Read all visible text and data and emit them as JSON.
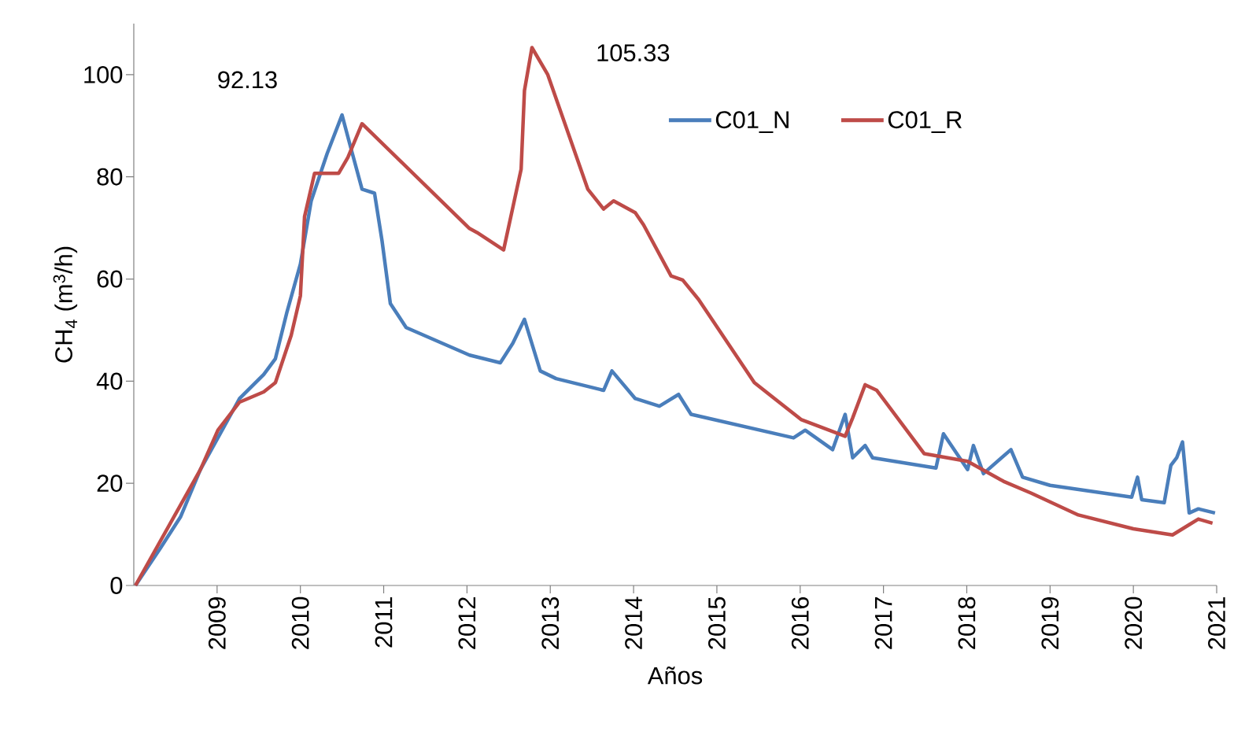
{
  "chart_data": {
    "type": "line",
    "xlabel": "Años",
    "ylabel": "CH$_{4}$ (m$^{3}$/h)",
    "xlim": [
      2008,
      2021
    ],
    "ylim": [
      0,
      110
    ],
    "xticks": [
      2009,
      2010,
      2011,
      2012,
      2013,
      2014,
      2015,
      2016,
      2017,
      2018,
      2019,
      2020,
      2021
    ],
    "yticks": [
      0,
      20,
      40,
      60,
      80,
      100
    ],
    "grid": false,
    "legend": "top right",
    "marker": "none",
    "line_style": "solid",
    "annotations": [
      "92.13",
      "105.33"
    ],
    "series": [
      {
        "name": "C01_N",
        "color": "#4a7ebb",
        "x": [
          2008.02,
          2008.32,
          2008.56,
          2008.8,
          2009.01,
          2009.27,
          2009.56,
          2009.7,
          2009.84,
          2010.0,
          2010.13,
          2010.32,
          2010.5,
          2010.6,
          2010.74,
          2010.89,
          2010.98,
          2011.08,
          2011.27,
          2012.03,
          2012.4,
          2012.55,
          2012.69,
          2012.88,
          2013.07,
          2013.64,
          2013.74,
          2014.02,
          2014.31,
          2014.54,
          2014.69,
          2015.92,
          2016.06,
          2016.39,
          2016.54,
          2016.63,
          2016.78,
          2016.87,
          2017.63,
          2017.72,
          2018.01,
          2018.08,
          2018.2,
          2018.53,
          2018.67,
          2019.0,
          2019.98,
          2020.05,
          2020.1,
          2020.37,
          2020.45,
          2020.52,
          2020.59,
          2020.67,
          2020.78,
          2020.98
        ],
        "values": [
          0,
          7.3,
          13.4,
          22.7,
          null,
          36.6,
          41.3,
          44.4,
          53.6,
          62.9,
          75.3,
          84.5,
          92.1,
          86,
          77.6,
          76.8,
          67.5,
          55.2,
          50.5,
          45.1,
          43.6,
          47.4,
          52.1,
          42,
          40.5,
          38.2,
          42,
          36.6,
          35.1,
          37.4,
          33.5,
          28.9,
          30.4,
          26.6,
          33.5,
          25,
          27.4,
          25,
          23,
          29.7,
          22.7,
          27.4,
          21.9,
          26.6,
          21.2,
          19.6,
          17.3,
          21.2,
          16.8,
          16.2,
          23.5,
          25,
          28.1,
          14.2,
          15,
          14.2
        ]
      },
      {
        "name": "C01_R",
        "color": "#be4b48",
        "x": [
          2008.02,
          2008.8,
          2009.01,
          2009.27,
          2009.56,
          2009.7,
          2009.89,
          2010.0,
          2010.05,
          2010.17,
          2010.46,
          2010.57,
          2010.74,
          2012.03,
          2012.12,
          2012.44,
          2012.65,
          2012.69,
          2012.78,
          2012.97,
          2013.45,
          2013.64,
          2013.76,
          2014.02,
          2014.12,
          2014.45,
          2014.59,
          2014.78,
          2015.45,
          2016.01,
          2016.54,
          2016.63,
          2016.78,
          2016.92,
          2017.49,
          2018.01,
          2018.44,
          2018.77,
          2019.34,
          2020.0,
          2020.47,
          2020.67,
          2020.78,
          2020.95
        ],
        "values": [
          0,
          22.7,
          30.4,
          35.9,
          37.9,
          39.7,
          49,
          56.7,
          72.2,
          80.7,
          80.7,
          83.8,
          90.4,
          69.9,
          69.1,
          65.7,
          81.5,
          96.9,
          105.3,
          100,
          77.6,
          73.7,
          75.3,
          73,
          70.6,
          60.6,
          59.8,
          56,
          39.7,
          32.5,
          29.2,
          32.8,
          39.3,
          38.2,
          25.8,
          24.3,
          20.4,
          18.1,
          13.8,
          11.1,
          9.9,
          11.9,
          13,
          12.2
        ]
      }
    ]
  }
}
